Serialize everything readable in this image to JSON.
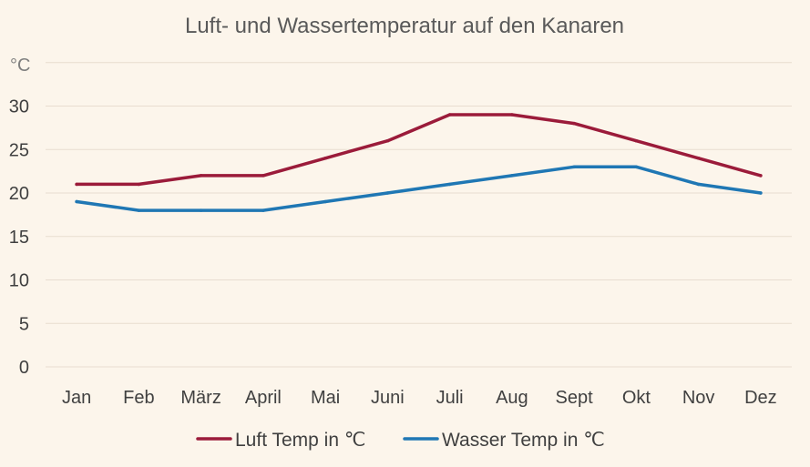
{
  "chart_data": {
    "type": "line",
    "title": "Luft- und Wassertemperatur auf den Kanaren",
    "y_unit_label": "°C",
    "xlabel": "",
    "ylabel": "",
    "categories": [
      "Jan",
      "Feb",
      "März",
      "April",
      "Mai",
      "Juni",
      "Juli",
      "Aug",
      "Sept",
      "Okt",
      "Nov",
      "Dez"
    ],
    "yticks": [
      0,
      5,
      10,
      15,
      20,
      25,
      30
    ],
    "ylim": [
      0,
      35
    ],
    "grid": true,
    "legend_position": "bottom",
    "series": [
      {
        "name": "Luft Temp in ℃",
        "color": "#9b1b3a",
        "values": [
          21,
          21,
          22,
          22,
          24,
          26,
          29,
          29,
          28,
          26,
          24,
          22
        ]
      },
      {
        "name": "Wasser Temp in ℃",
        "color": "#1f77b4",
        "values": [
          19,
          18,
          18,
          18,
          19,
          20,
          21,
          22,
          23,
          23,
          21,
          20
        ]
      }
    ]
  }
}
